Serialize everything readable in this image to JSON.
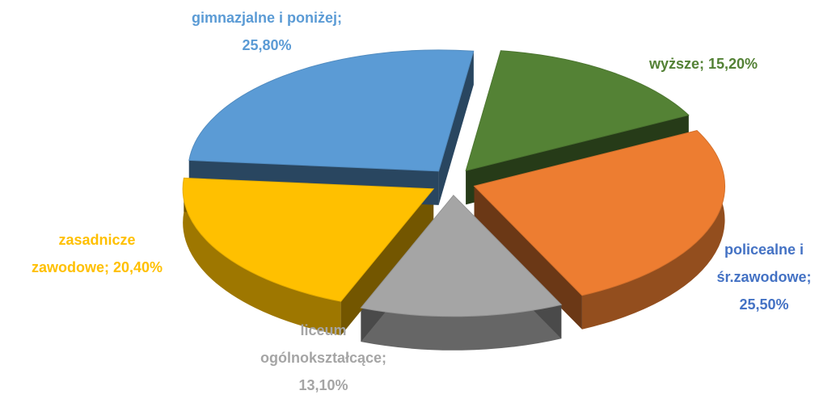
{
  "chart_data": {
    "type": "pie",
    "categories": [
      "wyższe",
      "policealne i śr.zawodowe",
      "liceum ogólnokształcące",
      "zasadnicze zawodowe",
      "gimnazjalne i poniżej"
    ],
    "values": [
      15.2,
      25.5,
      13.1,
      20.4,
      25.8
    ],
    "value_labels": [
      "15,20%",
      "25,50%",
      "13,10%",
      "20,40%",
      "25,80%"
    ],
    "label_separator": ";",
    "colors": [
      "#548235",
      "#ed7d31",
      "#a5a5a5",
      "#ffc000",
      "#5b9bd5"
    ],
    "label_colors": [
      "#538135",
      "#4472c4",
      "#a5a5a5",
      "#ffc000",
      "#5b9bd5"
    ]
  }
}
